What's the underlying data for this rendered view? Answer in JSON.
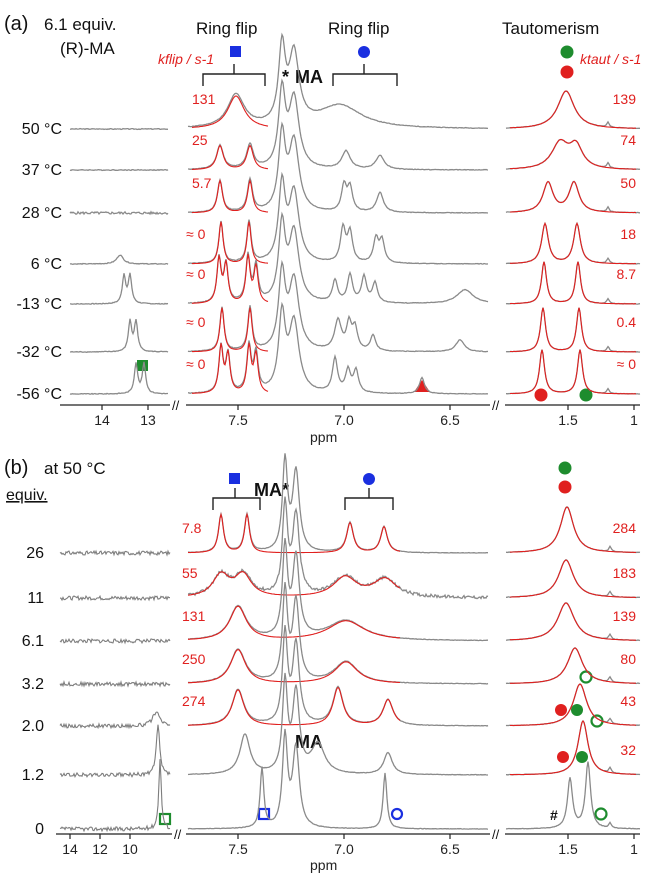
{
  "chart_data": [
    {
      "panel": "(a)",
      "type": "line",
      "condition": [
        "6.1 equiv.",
        "(R)-MA"
      ],
      "region_titles": [
        "Ring flip",
        "Ring flip",
        "Tautomerism"
      ],
      "left_unit_label": "kflip / s-1",
      "right_unit_label": "ktaut / s-1",
      "xlabel": "ppm",
      "x_ticks_left": [
        "14",
        "13"
      ],
      "x_ticks_mid": [
        "7.5",
        "7.0",
        "6.5"
      ],
      "x_ticks_right": [
        "1.5",
        "1"
      ],
      "temperatures": [
        "50 °C",
        "37 °C",
        "28 °C",
        "6 °C",
        "-13 °C",
        "-32 °C",
        "-56 °C"
      ],
      "k_flip": [
        "131",
        "25",
        "5.7",
        "≈ 0",
        "≈ 0",
        "≈ 0",
        "≈ 0"
      ],
      "k_taut": [
        "139",
        "74",
        "50",
        "18",
        "8.7",
        "0.4",
        "≈ 0"
      ],
      "annotations": [
        "*",
        "MA"
      ],
      "markers": {
        "blue_square": "blue-square",
        "blue_circle": "blue-circle",
        "green": "#1e8c2e",
        "red": "#e0201f",
        "blue": "#1a2fe0"
      }
    },
    {
      "panel": "(b)",
      "type": "line",
      "condition": "at 50 °C",
      "row_header": "equiv.",
      "xlabel": "ppm",
      "x_ticks_left": [
        "14",
        "12",
        "10"
      ],
      "x_ticks_mid": [
        "7.5",
        "7.0",
        "6.5"
      ],
      "x_ticks_right": [
        "1.5",
        "1"
      ],
      "equivalents": [
        "26",
        "11",
        "6.1",
        "3.2",
        "2.0",
        "1.2",
        "0"
      ],
      "k_flip": [
        "7.8",
        "55",
        "131",
        "250",
        "274",
        "",
        ""
      ],
      "k_taut": [
        "284",
        "183",
        "139",
        "80",
        "43",
        "32",
        ""
      ],
      "annotations": [
        "MA*",
        "MA",
        "#"
      ]
    }
  ],
  "colors": {
    "fit": "#e0201f",
    "spectrum": "#8a8a8a",
    "blue": "#1a2fe0",
    "green": "#1e8c2e",
    "red": "#e0201f"
  }
}
